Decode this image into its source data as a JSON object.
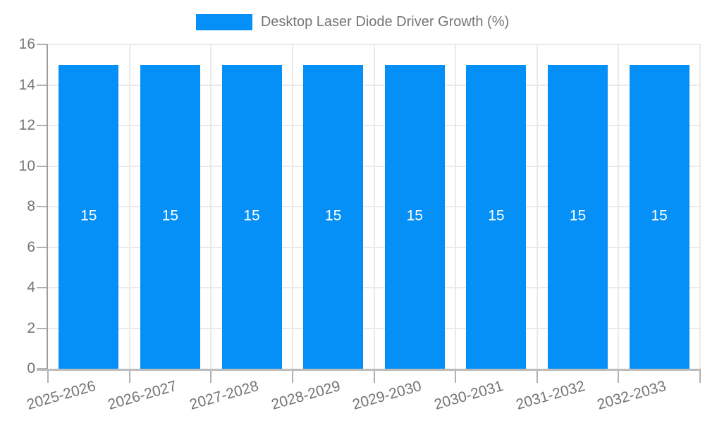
{
  "chart_data": {
    "type": "bar",
    "title": "",
    "legend": {
      "label": "Desktop Laser Diode Driver Growth (%)",
      "position": "top"
    },
    "categories": [
      "2025-2026",
      "2026-2027",
      "2027-2028",
      "2028-2029",
      "2029-2030",
      "2030-2031",
      "2031-2032",
      "2032-2033"
    ],
    "series": [
      {
        "name": "Desktop Laser Diode Driver Growth (%)",
        "values": [
          15,
          15,
          15,
          15,
          15,
          15,
          15,
          15
        ]
      }
    ],
    "bar_value_labels": [
      "15",
      "15",
      "15",
      "15",
      "15",
      "15",
      "15",
      "15"
    ],
    "xlabel": "",
    "ylabel": "",
    "ylim": [
      0,
      16
    ],
    "ytick_step": 2,
    "yticks": [
      0,
      2,
      4,
      6,
      8,
      10,
      12,
      14,
      16
    ],
    "grid": true,
    "x_label_rotation_deg": -16,
    "colors": {
      "bar": "#0590f8",
      "bar_value_label": "#ffffff",
      "tick_text": "#757575",
      "grid_line": "#eaeaea",
      "y_axis_line": "#9e9e9e",
      "x_axis_line": "#bcbcbc",
      "tick_mark": "#b0b0b0",
      "background": "#ffffff"
    }
  }
}
